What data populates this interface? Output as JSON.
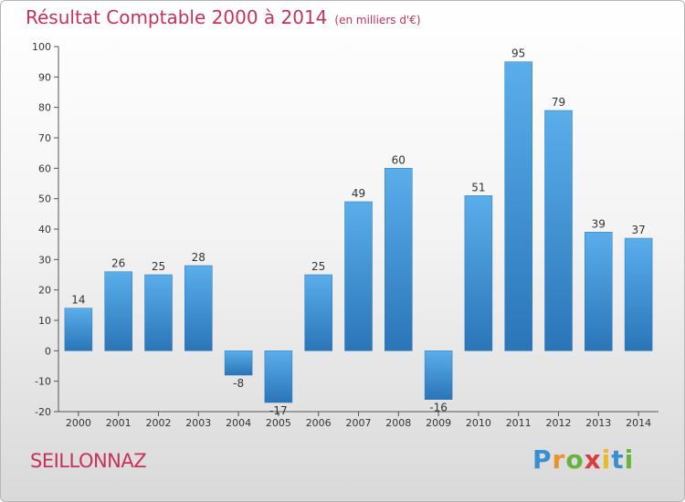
{
  "chart_data": {
    "type": "bar",
    "title": "Résultat Comptable 2000 à 2014",
    "subtitle": "(en milliers d'€)",
    "categories": [
      "2000",
      "2001",
      "2002",
      "2003",
      "2004",
      "2005",
      "2006",
      "2007",
      "2008",
      "2009",
      "2010",
      "2011",
      "2012",
      "2013",
      "2014"
    ],
    "values": [
      14,
      26,
      25,
      28,
      -8,
      -17,
      25,
      49,
      60,
      -16,
      51,
      95,
      79,
      39,
      37
    ],
    "ylim": [
      -20,
      100
    ],
    "yticks": [
      -20,
      -10,
      0,
      10,
      20,
      30,
      40,
      50,
      60,
      70,
      80,
      90,
      100
    ],
    "grid": false,
    "bar_color": "#3d8fd6"
  },
  "commune": "SEILLONNAZ",
  "logo": {
    "letters": [
      {
        "ch": "P",
        "color": "#3a8fd0"
      },
      {
        "ch": "r",
        "color": "#e9932b"
      },
      {
        "ch": "o",
        "color": "#6ab23e"
      },
      {
        "ch": "x",
        "color": "#d93c3c"
      },
      {
        "ch": "i",
        "color": "#e9b82b"
      },
      {
        "ch": "t",
        "color": "#3a8fd0"
      },
      {
        "ch": "i",
        "color": "#6ab23e"
      }
    ]
  }
}
